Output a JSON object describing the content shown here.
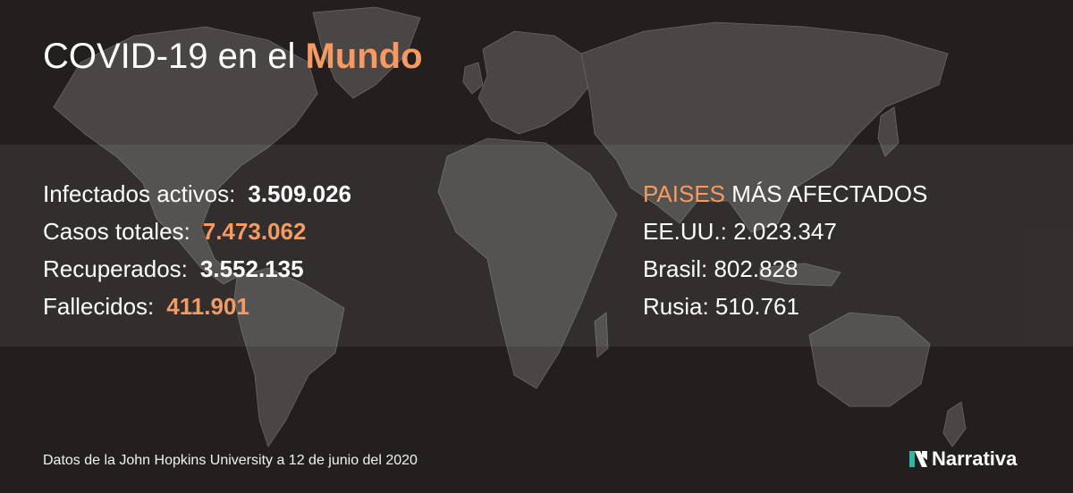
{
  "title": {
    "prefix": "COVID-19 en el ",
    "highlight": "Mundo"
  },
  "stats": [
    {
      "label": "Infectados activos:",
      "value": "3.509.026"
    },
    {
      "label": "Casos totales:",
      "value": "7.473.062"
    },
    {
      "label": "Recuperados:",
      "value": "3.552.135"
    },
    {
      "label": "Fallecidos:",
      "value": "411.901"
    }
  ],
  "countries": {
    "heading_highlight": "PAISES",
    "heading_rest": " MÁS AFECTADOS",
    "items": [
      "EE.UU.: 2.023.347",
      "Brasil: 802.828",
      "Rusia: 510.761"
    ]
  },
  "source": "Datos de la John Hopkins University a 12 de junio del 2020",
  "brand": "Narrativa",
  "colors": {
    "background": "#231f1e",
    "accent": "#f59a62",
    "land": "#4a4847",
    "logo_green": "#2fb7a0"
  }
}
